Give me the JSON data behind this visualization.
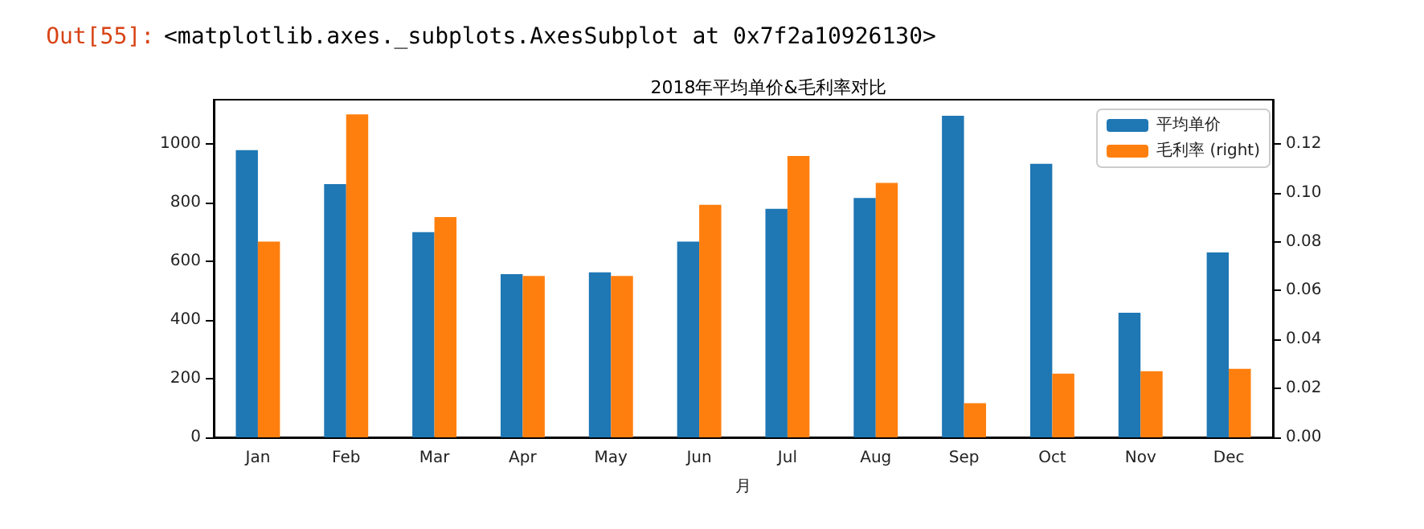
{
  "chart_data": {
    "type": "bar",
    "title": "2018年平均单价&毛利率对比",
    "xlabel": "月",
    "annotations": [
      "Out[55]:",
      "<matplotlib.axes._subplots.AxesSubplot at 0x7f2a10926130>"
    ],
    "categories": [
      "Jan",
      "Feb",
      "Mar",
      "Apr",
      "May",
      "Jun",
      "Jul",
      "Aug",
      "Sep",
      "Oct",
      "Nov",
      "Dec"
    ],
    "series": [
      {
        "name": "平均单价",
        "color": "#1f77b4",
        "values": [
          980,
          864,
          700,
          557,
          563,
          668,
          780,
          817,
          1097,
          933,
          425,
          631
        ]
      },
      {
        "name": "毛利率 (right)",
        "color": "#ff7f0e",
        "axis": "y2",
        "values": [
          0.08,
          0.132,
          0.09,
          0.066,
          0.066,
          0.095,
          0.115,
          0.104,
          0.014,
          0.026,
          0.027,
          0.028
        ]
      }
    ],
    "ylim": [
      0,
      1152
    ],
    "yticks": [
      0,
      200,
      400,
      600,
      800,
      1000
    ],
    "y2lim": [
      0,
      0.138
    ],
    "y2ticks": [
      {
        "value": 0,
        "label": "0.00"
      },
      {
        "value": 0.02,
        "label": "0.02"
      },
      {
        "value": 0.04,
        "label": "0.04"
      },
      {
        "value": 0.06,
        "label": "0.06"
      },
      {
        "value": 0.08,
        "label": "0.08"
      },
      {
        "value": 0.1,
        "label": "0.10"
      },
      {
        "value": 0.12,
        "label": "0.12"
      }
    ],
    "legend": "top right",
    "grid": false
  }
}
